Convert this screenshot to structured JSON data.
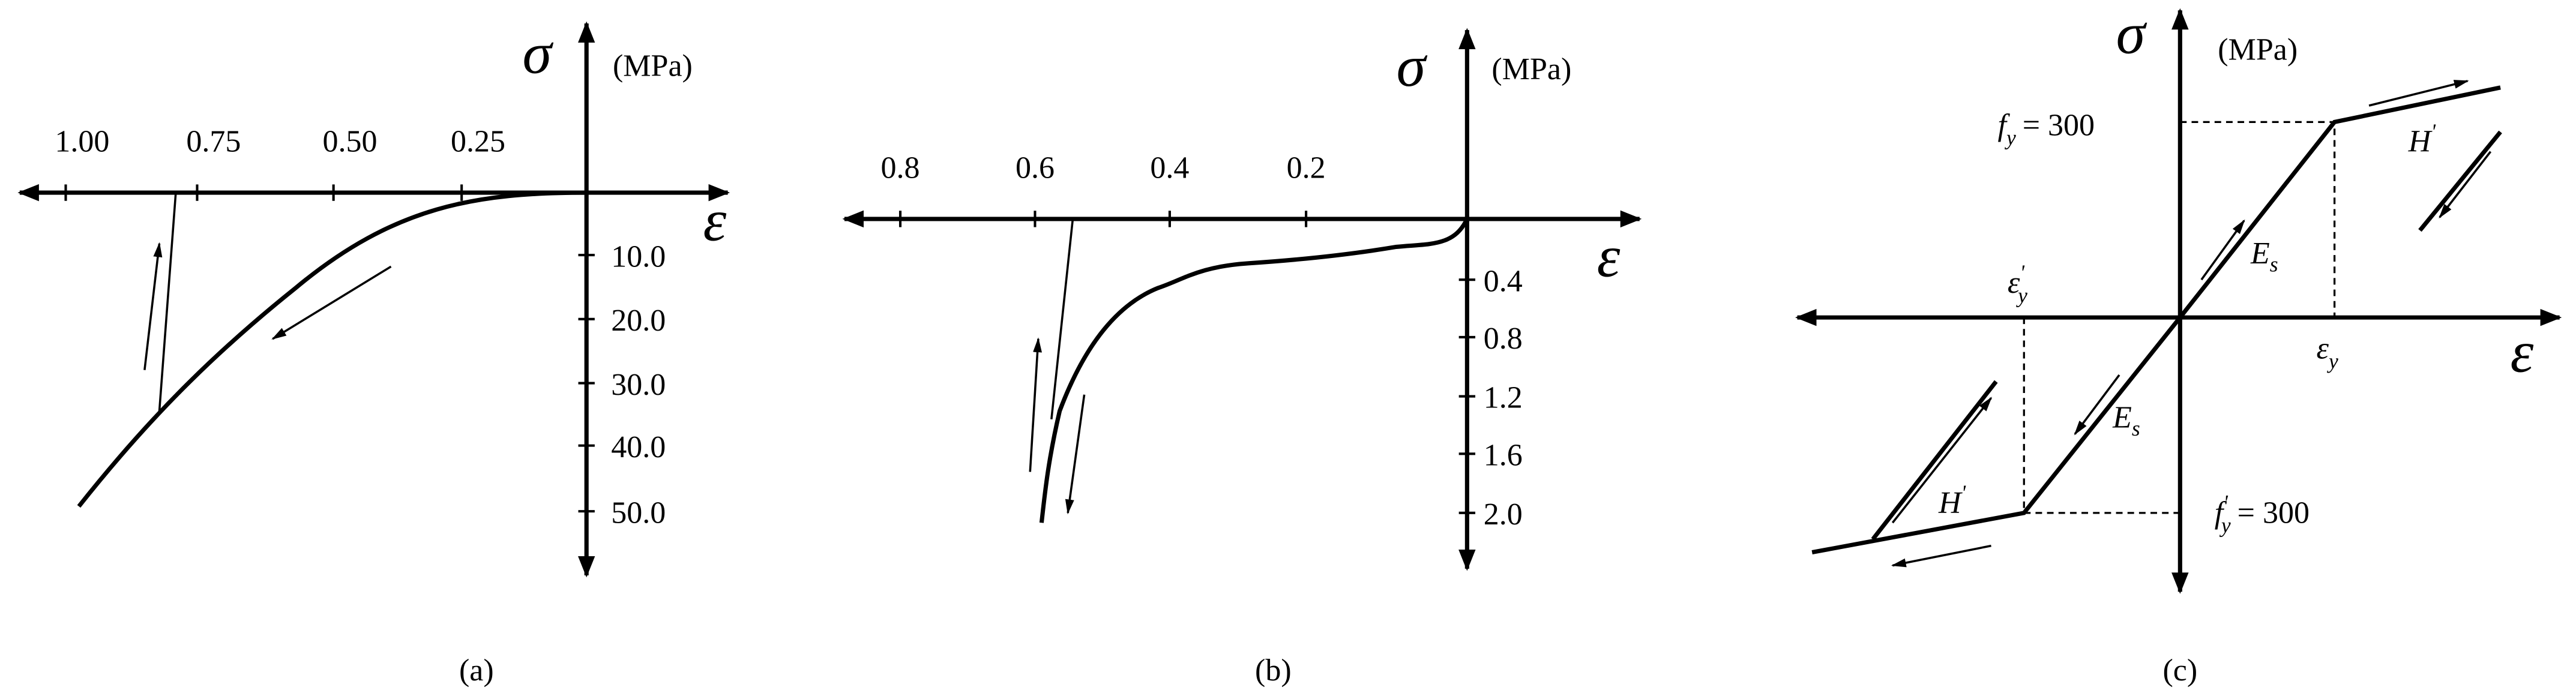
{
  "panels": [
    {
      "caption": "(a)",
      "y_symbol": "σ",
      "unit": "(MPa)",
      "x_symbol": "ε",
      "x_tick_labels": [
        "1.00",
        "0.75",
        "0.50",
        "0.25"
      ],
      "y_tick_labels": [
        "10.0",
        "20.0",
        "30.0",
        "40.0",
        "50.0"
      ]
    },
    {
      "caption": "(b)",
      "y_symbol": "σ",
      "unit": "(MPa)",
      "x_symbol": "ε",
      "x_tick_labels": [
        "0.8",
        "0.6",
        "0.4",
        "0.2"
      ],
      "y_tick_labels": [
        "0.4",
        "0.8",
        "1.2",
        "1.6",
        "2.0"
      ]
    },
    {
      "caption": "(c)",
      "y_symbol": "σ",
      "unit": "(MPa)",
      "x_symbol": "ε",
      "fy": {
        "symbol": "f",
        "sub": "y",
        "rest": "= 300"
      },
      "fy_prime": {
        "symbol": "f",
        "prime": "'",
        "sub": "y",
        "rest": "= 300"
      },
      "h_upper": {
        "symbol": "H",
        "prime": "'"
      },
      "h_lower": {
        "symbol": "H",
        "prime": "'"
      },
      "es_upper": {
        "symbol": "E",
        "sub": "s"
      },
      "es_lower": {
        "symbol": "E",
        "sub": "s"
      },
      "eps_y": {
        "symbol": "ε",
        "sub": "y"
      },
      "eps_y_prime": {
        "symbol": "ε",
        "prime": "'",
        "sub": "y"
      }
    }
  ]
}
